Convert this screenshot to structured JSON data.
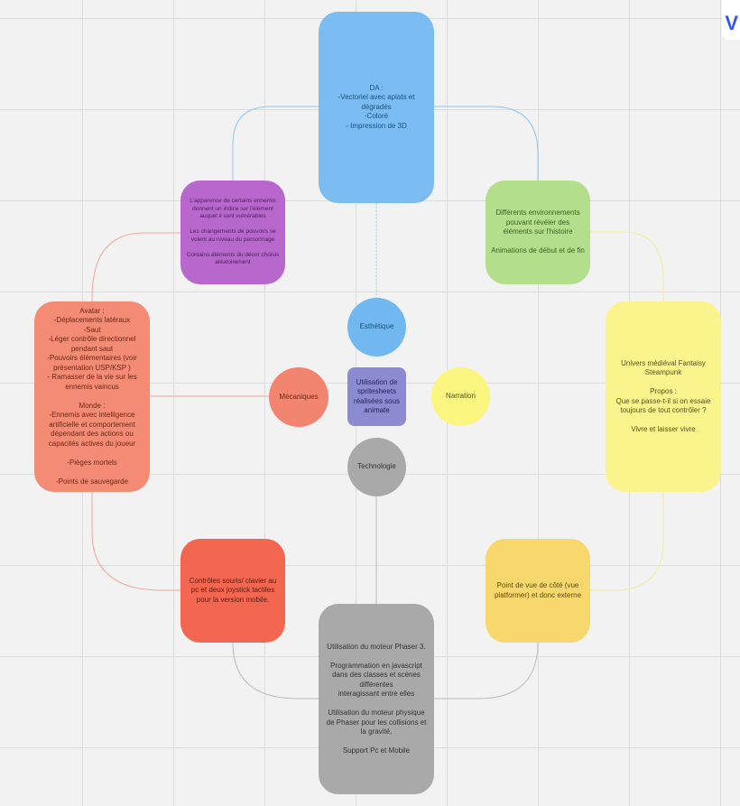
{
  "nodes": {
    "da": "DA :\n-Vectoriel avec aplats et dégradés\n-Coloré\n- Impression de 3D",
    "enemies": "L'apparence de certains ennemis donnent un indice sur l'élément auquel il sont vulnérables\n\nLes changements de pouvoirs se voient au niveau du personnage\n\nContains éléments du décor choisis aléatoirement",
    "environments": "Différents environnements pouvant révéler des éléments sur l'histoire\n\nAnimations de début et de fin",
    "avatar": "Avatar :\n-Déplacements latéraux\n-Saut\n-Léger contrôle directionnel pendant saut\n-Pouvoirs élémentaires (voir présentation USP/KSP )\n- Ramasser de la vie sur les ennemis vaincus\n\nMonde :\n-Ennemis avec intelligence artificielle et comportement dépendant des actions ou capacités actives du joueur\n\n-Pièges mortels\n\n-Points de sauvegarde",
    "univers": "Univers médiéval Fantaisy Steampunk\n\nPropos :\nQue se passe-t-il si on essaie toujours de tout contrôler ?\n\nVivre et laisser vivre",
    "esthetique": "Esthétique",
    "mecaniques": "Mécaniques",
    "center": "Utilisation de spritesheets réalisées sous animate",
    "narration": "Narration",
    "technologie": "Technologie",
    "controles": "Contrôles souris/ clavier au pc et deux joystick tactiles pour  la version mobile.",
    "pov": "Point de vue de côté (vue platformer) et donc externe",
    "phaser": "Utilisation du moteur Phaser 3.\n\nProgrammation en javascript dans des classes et scènes différentes\ninteragissant entre elles\n\nUtilisation du moteur physique de Phaser pour les collisions et la gravité.\n\nSupport Pc et Mobile"
  },
  "colors": {
    "blue": "#7bbcf2",
    "blue_line": "#8ec6f0",
    "purple": "#b868cc",
    "green": "#b3df8c",
    "salmon": "#f48c75",
    "salmon_line": "#f2a89a",
    "yellow": "#fbf48c",
    "yellow_line": "#f3ec9a",
    "circle_blue": "#72b8f0",
    "circle_salmon": "#f38570",
    "circle_center": "#8c8ad1",
    "circle_yellow": "#fbf67f",
    "circle_gray": "#a9a9a9",
    "red": "#f36650",
    "amber": "#f8d86c",
    "gray": "#a9a9a9",
    "gray_line": "#b9b9b9"
  }
}
